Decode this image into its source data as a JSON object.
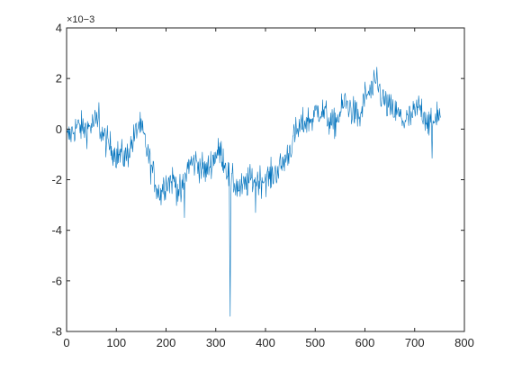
{
  "figure": {
    "background": "#ffffff",
    "axes_color": "#262626",
    "series_color": "#0072bd"
  },
  "chart_data": {
    "type": "line",
    "title": "",
    "xlabel": "",
    "ylabel": "",
    "xlim": [
      0,
      800
    ],
    "ylim": [
      -8,
      4
    ],
    "y_exponent_label": "×10−3",
    "xticks": [
      0,
      100,
      200,
      300,
      400,
      500,
      600,
      700,
      800
    ],
    "xtick_labels": [
      "0",
      "100",
      "200",
      "300",
      "400",
      "500",
      "600",
      "700",
      "800"
    ],
    "yticks": [
      -8,
      -6,
      -4,
      -2,
      0,
      2,
      4
    ],
    "ytick_labels": [
      "-8",
      "-6",
      "-4",
      "-2",
      "0",
      "2",
      "4"
    ],
    "grid": false,
    "legend": "none",
    "series": [
      {
        "color": "#0072bd",
        "x_start": 1,
        "x_step": 1,
        "noise_amplitude": 0.6,
        "baseline": [
          [
            0,
            -0.4
          ],
          [
            20,
            0.1
          ],
          [
            40,
            0.0
          ],
          [
            60,
            0.3
          ],
          [
            80,
            -0.5
          ],
          [
            100,
            -1.0
          ],
          [
            120,
            -1.1
          ],
          [
            135,
            -0.4
          ],
          [
            145,
            0.2
          ],
          [
            155,
            -0.3
          ],
          [
            170,
            -1.5
          ],
          [
            185,
            -2.5
          ],
          [
            200,
            -2.1
          ],
          [
            215,
            -2.0
          ],
          [
            230,
            -2.6
          ],
          [
            245,
            -1.4
          ],
          [
            260,
            -1.3
          ],
          [
            280,
            -1.7
          ],
          [
            300,
            -1.0
          ],
          [
            310,
            -0.9
          ],
          [
            320,
            -1.4
          ],
          [
            328,
            -2.0
          ],
          [
            335,
            -2.1
          ],
          [
            350,
            -2.4
          ],
          [
            370,
            -2.0
          ],
          [
            390,
            -2.0
          ],
          [
            410,
            -1.9
          ],
          [
            430,
            -1.5
          ],
          [
            445,
            -1.0
          ],
          [
            460,
            -0.2
          ],
          [
            480,
            0.3
          ],
          [
            495,
            0.4
          ],
          [
            505,
            0.8
          ],
          [
            520,
            0.6
          ],
          [
            535,
            0.1
          ],
          [
            550,
            0.6
          ],
          [
            560,
            1.1
          ],
          [
            575,
            0.7
          ],
          [
            590,
            0.4
          ],
          [
            600,
            1.3
          ],
          [
            615,
            1.5
          ],
          [
            625,
            1.8
          ],
          [
            635,
            1.2
          ],
          [
            650,
            0.8
          ],
          [
            665,
            0.6
          ],
          [
            680,
            0.3
          ],
          [
            695,
            0.5
          ],
          [
            710,
            0.9
          ],
          [
            725,
            0.4
          ],
          [
            735,
            0.0
          ],
          [
            745,
            0.7
          ],
          [
            752,
            0.5
          ]
        ],
        "extremes": [
          [
            328,
            -4.8
          ],
          [
            329,
            -7.4
          ],
          [
            330,
            -3.2
          ],
          [
            624,
            2.45
          ],
          [
            735,
            -1.15
          ],
          [
            65,
            1.05
          ],
          [
            237,
            -3.5
          ],
          [
            190,
            -3.0
          ],
          [
            380,
            -3.3
          ]
        ]
      }
    ]
  }
}
